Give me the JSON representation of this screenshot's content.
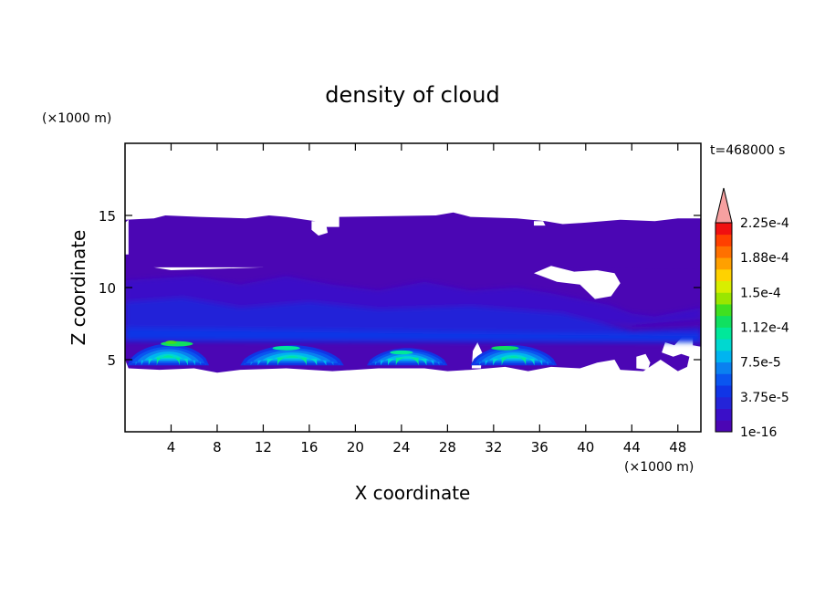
{
  "chart_data": {
    "type": "heatmap",
    "title": "density of cloud",
    "xlabel": "X coordinate",
    "ylabel": "Z coordinate",
    "x_unit": "(×1000 m)",
    "y_unit": "(×1000 m)",
    "time_label": "t=468000 s",
    "xlim": [
      0,
      50
    ],
    "ylim": [
      0,
      20
    ],
    "x_ticks": [
      4,
      8,
      12,
      16,
      20,
      24,
      28,
      32,
      36,
      40,
      44,
      48
    ],
    "y_ticks": [
      5,
      10,
      15
    ],
    "colorbar": {
      "labels": [
        "1e-16",
        "3.75e-5",
        "7.5e-5",
        "1.12e-4",
        "1.5e-4",
        "1.88e-4",
        "2.25e-4"
      ],
      "colors": [
        "#4B06B4",
        "#3A0FC8",
        "#2424D8",
        "#1035E6",
        "#0A55F0",
        "#0A80F0",
        "#00B4F0",
        "#00D8D0",
        "#00E89A",
        "#10E060",
        "#40E020",
        "#9AE600",
        "#D8EE00",
        "#FFD200",
        "#FFA000",
        "#FF7000",
        "#FF4000",
        "#F01010"
      ],
      "extend_max_color": "#F6A0A0"
    },
    "cloud_features": {
      "upper_layer_z": [
        11.5,
        15
      ],
      "main_layer_z": [
        4.2,
        11.5
      ],
      "cores": [
        {
          "x_center": 4.5,
          "peak": "1.5e-4"
        },
        {
          "x_center": 14,
          "peak": "1.12e-4"
        },
        {
          "x_center": 24,
          "peak": "1.12e-4"
        },
        {
          "x_center": 33,
          "peak": "1.5e-4"
        }
      ]
    }
  }
}
